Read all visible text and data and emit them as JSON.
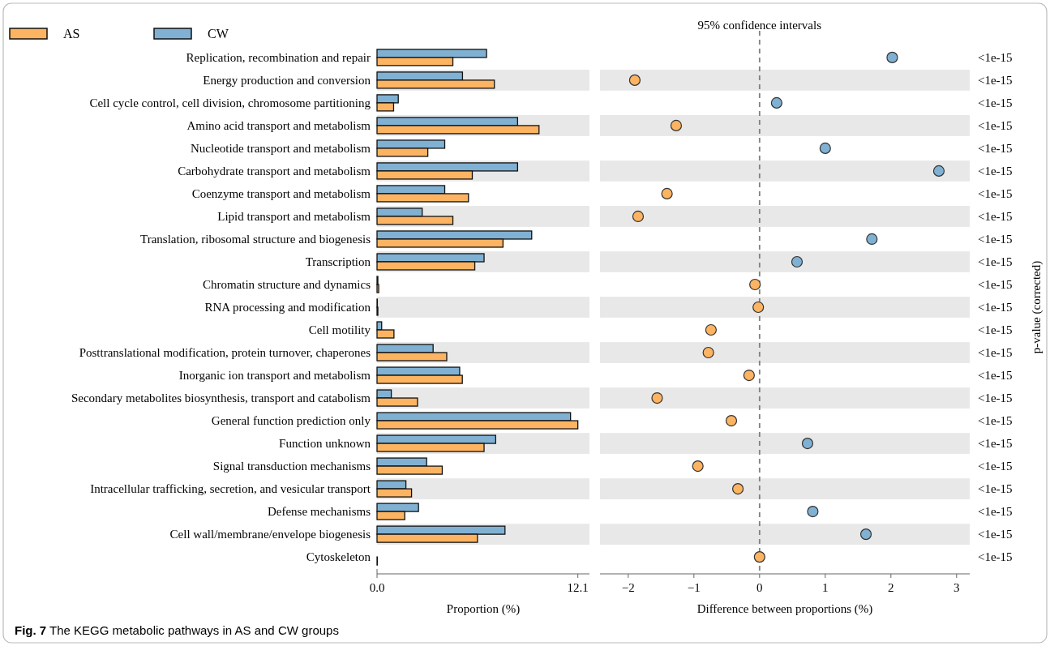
{
  "chart_data": [
    {
      "type": "bar",
      "orientation": "horizontal",
      "categories": [
        "Replication, recombination and repair",
        "Energy production and conversion",
        "Cell cycle control, cell division, chromosome partitioning",
        "Amino acid transport and metabolism",
        "Nucleotide transport and metabolism",
        "Carbohydrate transport and metabolism",
        "Coenzyme transport and metabolism",
        "Lipid transport and metabolism",
        "Translation, ribosomal structure and biogenesis",
        "Transcription",
        "Chromatin structure and dynamics",
        "RNA processing and modification",
        "Cell motility",
        "Posttranslational modification, protein turnover, chaperones",
        "Inorganic ion transport and metabolism",
        "Secondary metabolites biosynthesis, transport and catabolism",
        "General function prediction only",
        "Function unknown",
        "Signal transduction mechanisms",
        "Intracellular trafficking, secretion, and vesicular transport",
        "Defense mechanisms",
        "Cell wall/membrane/envelope biogenesis",
        "Cytoskeleton"
      ],
      "series": [
        {
          "name": "AS",
          "color": "#fdb462",
          "values": [
            4.57,
            7.07,
            1.0,
            9.76,
            3.06,
            5.74,
            5.51,
            4.57,
            7.59,
            5.89,
            0.1,
            0.05,
            1.02,
            4.2,
            5.14,
            2.44,
            12.1,
            6.45,
            3.93,
            2.08,
            1.67,
            6.05,
            0.02
          ]
        },
        {
          "name": "CW",
          "color": "#80b1d3",
          "values": [
            6.6,
            5.15,
            1.28,
            8.47,
            4.08,
            8.47,
            4.08,
            2.72,
            9.32,
            6.45,
            0.05,
            0.02,
            0.28,
            3.38,
            4.98,
            0.86,
            11.66,
            7.15,
            2.99,
            1.74,
            2.5,
            7.71,
            null
          ]
        }
      ],
      "xlim": [
        0,
        12.8
      ],
      "xticks": [
        {
          "value": 0,
          "label": "0.0"
        },
        12.1
      ],
      "xlabel": "Proportion (%)",
      "legend": "top left",
      "grid": false,
      "annotations": [
        "Fig. 7 The KEGG metabolic pathways in AS and CW groups"
      ]
    },
    {
      "type": "scatter",
      "orientation": "horizontal",
      "title": "95% confidence intervals",
      "categories": [
        "<1e-15",
        "<1e-15",
        "<1e-15",
        "<1e-15",
        "<1e-15",
        "<1e-15",
        "<1e-15",
        "<1e-15",
        "<1e-15",
        "<1e-15",
        "<1e-15",
        "<1e-15",
        "<1e-15",
        "<1e-15",
        "<1e-15",
        "<1e-15",
        "<1e-15",
        "<1e-15",
        "<1e-15",
        "<1e-15",
        "<1e-15",
        "<1e-15",
        "<1e-15"
      ],
      "values": [
        2.02,
        -1.9,
        0.26,
        -1.27,
        1.0,
        2.73,
        -1.41,
        -1.85,
        1.71,
        0.57,
        -0.07,
        -0.02,
        -0.74,
        -0.78,
        -0.16,
        -1.56,
        -0.43,
        0.73,
        -0.94,
        -0.33,
        0.81,
        1.62,
        0.0
      ],
      "colors": [
        "#80b1d3",
        "#fdb462",
        "#80b1d3",
        "#fdb462",
        "#80b1d3",
        "#80b1d3",
        "#fdb462",
        "#fdb462",
        "#80b1d3",
        "#80b1d3",
        "#fdb462",
        "#fdb462",
        "#fdb462",
        "#fdb462",
        "#fdb462",
        "#fdb462",
        "#fdb462",
        "#80b1d3",
        "#fdb462",
        "#fdb462",
        "#80b1d3",
        "#80b1d3",
        "#fdb462"
      ],
      "marker": "circle",
      "xlim": [
        -2.43,
        3.2
      ],
      "xticks": [
        {
          "value": -2,
          "label": "−2"
        },
        {
          "value": -1,
          "label": "−1"
        },
        0,
        1,
        2,
        3
      ],
      "xlabel": "Difference between proportions (%)",
      "ylabel": "p-value (corrected)",
      "grid": false,
      "ref_lines": [
        {
          "axis": "x",
          "value": 0,
          "line_style": "dashed",
          "color": "#808080"
        }
      ]
    }
  ]
}
